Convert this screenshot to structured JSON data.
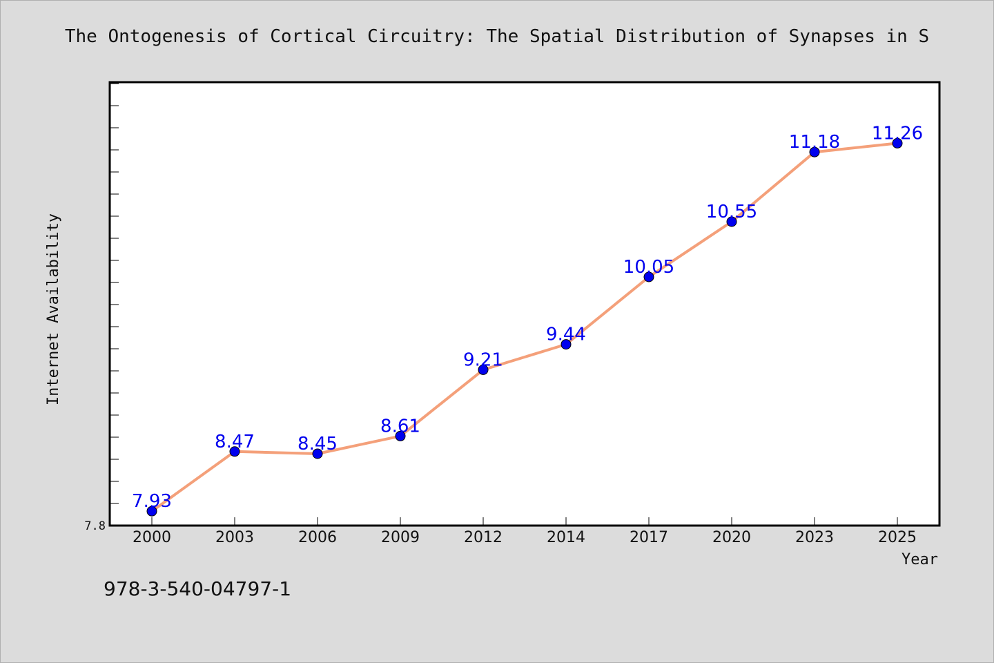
{
  "chart_data": {
    "type": "line",
    "title": "The Ontogenesis of Cortical Circuitry: The Spatial Distribution of Synapses in S",
    "xlabel": "Year",
    "ylabel": "Internet Availability",
    "categories": [
      "2000",
      "2003",
      "2006",
      "2009",
      "2012",
      "2014",
      "2017",
      "2020",
      "2023",
      "2025"
    ],
    "series": [
      {
        "values": [
          7.93,
          8.47,
          8.45,
          8.61,
          9.21,
          9.44,
          10.05,
          10.55,
          11.18,
          11.26
        ]
      }
    ],
    "ylim": [
      7.8,
      11.8
    ],
    "ytick_labels": [
      "7.8"
    ],
    "grid": false,
    "line_color": "#f4a07a",
    "marker_color": "#0000ee",
    "label_color": "#0000ee"
  },
  "footer": {
    "isbn": "978-3-540-04797-1"
  }
}
